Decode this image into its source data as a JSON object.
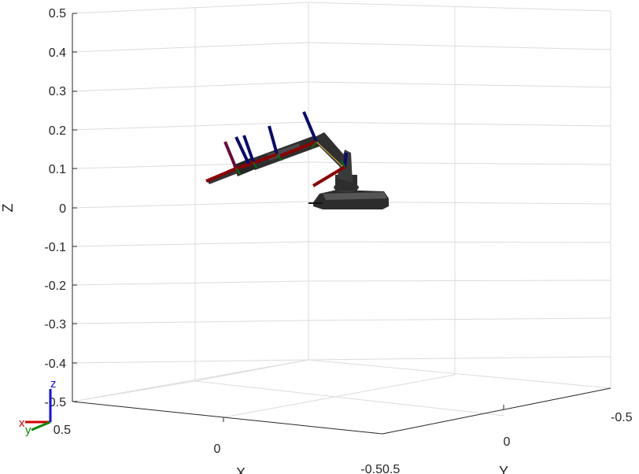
{
  "figure": {
    "axis_labels": {
      "x": "X",
      "y": "Y",
      "z": "Z"
    },
    "z_ticks": [
      "0.5",
      "0.4",
      "0.3",
      "0.2",
      "0.1",
      "0",
      "-0.1",
      "-0.2",
      "-0.3",
      "-0.4",
      "-0.5"
    ],
    "x_ticks": [
      "0.5",
      "0",
      "-0.5"
    ],
    "y_ticks": [
      "0.5",
      "0",
      "-0.5"
    ],
    "frame_triad": {
      "x": "x",
      "y": "y",
      "z": "z"
    },
    "colors": {
      "frame_x": "#d40000",
      "frame_y": "#0a8a0a",
      "frame_z": "#1010e0",
      "robot_body": "#333333",
      "link_x_axis": "#8b0000",
      "link_z_axis": "#0a0a6e",
      "link_y_axis": "#0b6b0b",
      "connector": "#e0b040"
    }
  }
}
